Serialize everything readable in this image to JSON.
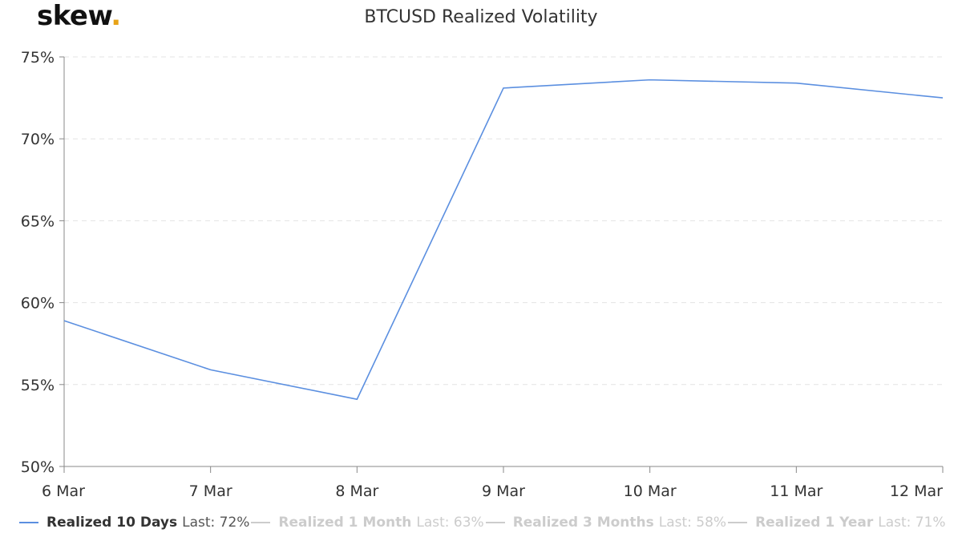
{
  "logo": {
    "text": "skew",
    "dot": "."
  },
  "chart_data": {
    "type": "line",
    "title": "BTCUSD Realized Volatility",
    "xlabel": "",
    "ylabel": "",
    "categories": [
      "6 Mar",
      "7 Mar",
      "8 Mar",
      "9 Mar",
      "10 Mar",
      "11 Mar",
      "12 Mar"
    ],
    "yticks": [
      "50%",
      "55%",
      "60%",
      "65%",
      "70%",
      "75%"
    ],
    "ylim": [
      50,
      75
    ],
    "grid": "horizontal dashed",
    "series": [
      {
        "name": "Realized 10 Days",
        "values": [
          58.9,
          55.9,
          54.1,
          73.1,
          73.6,
          73.4,
          72.5
        ],
        "color": "#5b8fe0",
        "visible": true
      }
    ],
    "legend": {
      "placement": "bottom-left",
      "items": [
        {
          "name": "Realized 10 Days",
          "last": "Last: 72%",
          "active": true,
          "color": "#5b8fe0"
        },
        {
          "name": "Realized 1 Month",
          "last": "Last: 63%",
          "active": false,
          "color": "#cccccc"
        },
        {
          "name": "Realized 3 Months",
          "last": "Last: 58%",
          "active": false,
          "color": "#cccccc"
        },
        {
          "name": "Realized 1 Year",
          "last": "Last: 71%",
          "active": false,
          "color": "#cccccc"
        }
      ]
    }
  }
}
